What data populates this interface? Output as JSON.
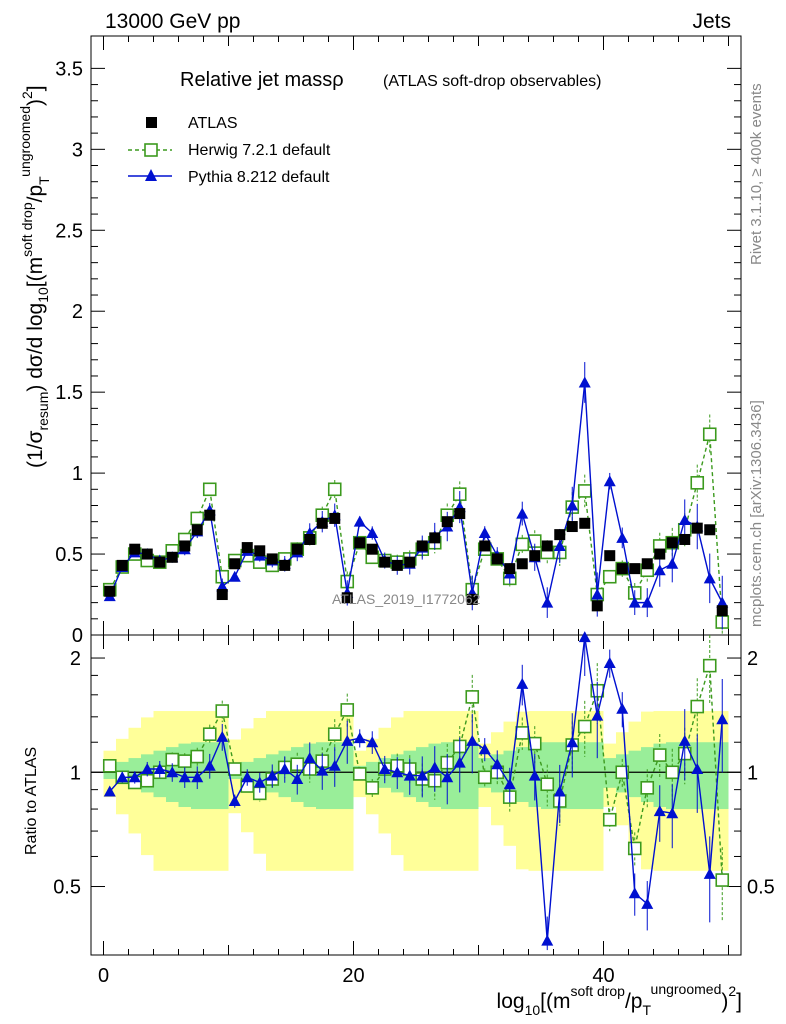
{
  "header": {
    "left": "13000 GeV pp",
    "right": "Jets"
  },
  "side_labels": {
    "rivet": "Rivet 3.1.10, ≥ 400k events",
    "mcplots": "mcplots.cern.ch [arXiv:1306.3436]"
  },
  "watermark": "ATLAS_2019_I1772062",
  "colors": {
    "atlas": "#000000",
    "herwig": "#3c9a1e",
    "pythia": "#0010d0",
    "band_inner": "#99ee99",
    "band_outer": "#ffff99"
  },
  "chart_data": [
    {
      "type": "scatter",
      "panel": "main",
      "title": "Relative jet massρ",
      "title_suffix": "(ATLAS soft-drop observables)",
      "ylabel": "(1/σ_resum) dσ/d log10[(m^{soft drop}/p_T^{ungroomed})^2]",
      "xlim": [
        -1,
        51
      ],
      "ylim": [
        0,
        3.7
      ],
      "yticks": [
        0,
        0.5,
        1,
        1.5,
        2,
        2.5,
        3,
        3.5
      ],
      "ytick_labels": [
        "0",
        "0.5",
        "1",
        "1.5",
        "2",
        "2.5",
        "3",
        "3.5"
      ],
      "legend": {
        "atlas": "ATLAS",
        "herwig": "Herwig 7.2.1 default",
        "pythia": "Pythia 8.212 default"
      },
      "x": [
        0.5,
        1.5,
        2.5,
        3.5,
        4.5,
        5.5,
        6.5,
        7.5,
        8.5,
        9.5,
        10.5,
        11.5,
        12.5,
        13.5,
        14.5,
        15.5,
        16.5,
        17.5,
        18.5,
        19.5,
        20.5,
        21.5,
        22.5,
        23.5,
        24.5,
        25.5,
        26.5,
        27.5,
        28.5,
        29.5,
        30.5,
        31.5,
        32.5,
        33.5,
        34.5,
        35.5,
        36.5,
        37.5,
        38.5,
        39.5,
        40.5,
        41.5,
        42.5,
        43.5,
        44.5,
        45.5,
        46.5,
        47.5,
        48.5,
        49.5
      ],
      "series": [
        {
          "name": "ATLAS",
          "values": [
            0.27,
            0.43,
            0.53,
            0.5,
            0.45,
            0.48,
            0.55,
            0.65,
            0.74,
            0.25,
            0.44,
            0.54,
            0.52,
            0.47,
            0.43,
            0.53,
            0.59,
            0.69,
            0.72,
            0.23,
            0.57,
            0.53,
            0.45,
            0.43,
            0.45,
            0.55,
            0.6,
            0.7,
            0.75,
            0.22,
            0.55,
            0.47,
            0.41,
            0.44,
            0.49,
            0.55,
            0.62,
            0.67,
            0.69,
            0.18,
            0.49,
            0.41,
            0.41,
            0.44,
            0.5,
            0.57,
            0.59,
            0.66,
            0.65,
            0.15
          ]
        },
        {
          "name": "Herwig 7.2.1 default",
          "values": [
            0.28,
            0.42,
            0.5,
            0.46,
            0.45,
            0.52,
            0.59,
            0.72,
            0.9,
            0.36,
            0.46,
            0.49,
            0.45,
            0.43,
            0.47,
            0.53,
            0.6,
            0.74,
            0.9,
            0.33,
            0.57,
            0.48,
            0.46,
            0.45,
            0.47,
            0.53,
            0.57,
            0.74,
            0.87,
            0.28,
            0.53,
            0.47,
            0.35,
            0.56,
            0.58,
            0.51,
            0.51,
            0.79,
            0.89,
            0.25,
            0.36,
            0.41,
            0.26,
            0.4,
            0.55,
            0.57,
            0.65,
            0.94,
            1.24,
            0.08
          ]
        },
        {
          "name": "Pythia 8.212 default",
          "values": [
            0.24,
            0.42,
            0.51,
            0.5,
            0.46,
            0.48,
            0.53,
            0.64,
            0.77,
            0.3,
            0.36,
            0.52,
            0.49,
            0.46,
            0.44,
            0.51,
            0.63,
            0.7,
            0.74,
            0.26,
            0.7,
            0.63,
            0.46,
            0.43,
            0.44,
            0.54,
            0.61,
            0.67,
            0.79,
            0.26,
            0.63,
            0.49,
            0.38,
            0.75,
            0.48,
            0.2,
            0.55,
            0.8,
            1.56,
            0.25,
            0.95,
            0.6,
            0.2,
            0.2,
            0.4,
            0.44,
            0.71,
            0.67,
            0.35,
            0.2
          ]
        }
      ]
    },
    {
      "type": "scatter",
      "panel": "ratio",
      "ylabel": "Ratio to ATLAS",
      "xlabel": "log10[(m^{soft drop}/p_T^{ungroomed})^2]",
      "xlim": [
        -1,
        51
      ],
      "ylim": [
        0.33,
        2.3
      ],
      "yticks": [
        0.5,
        1,
        2
      ],
      "ytick_labels": [
        "0.5",
        "1",
        "2"
      ],
      "xticks": [
        0,
        20,
        40
      ],
      "xtick_labels": [
        "0",
        "20",
        "40"
      ],
      "x": [
        0.5,
        1.5,
        2.5,
        3.5,
        4.5,
        5.5,
        6.5,
        7.5,
        8.5,
        9.5,
        10.5,
        11.5,
        12.5,
        13.5,
        14.5,
        15.5,
        16.5,
        17.5,
        18.5,
        19.5,
        20.5,
        21.5,
        22.5,
        23.5,
        24.5,
        25.5,
        26.5,
        27.5,
        28.5,
        29.5,
        30.5,
        31.5,
        32.5,
        33.5,
        34.5,
        35.5,
        36.5,
        37.5,
        38.5,
        39.5,
        40.5,
        41.5,
        42.5,
        43.5,
        44.5,
        45.5,
        46.5,
        47.5,
        48.5,
        49.5
      ],
      "series": [
        {
          "name": "Herwig 7.2.1 default",
          "values": [
            1.04,
            0.97,
            0.94,
            0.95,
            1.0,
            1.08,
            1.07,
            1.1,
            1.26,
            1.45,
            1.02,
            0.92,
            0.88,
            0.96,
            1.03,
            1.05,
            1.02,
            1.07,
            1.26,
            1.46,
            0.99,
            0.91,
            1.02,
            1.04,
            1.02,
            0.96,
            0.95,
            1.06,
            1.17,
            1.58,
            0.97,
            1.0,
            0.86,
            1.27,
            1.19,
            0.93,
            0.84,
            1.18,
            1.32,
            1.64,
            0.75,
            1.0,
            0.63,
            0.91,
            1.11,
            1.0,
            1.12,
            1.49,
            1.91,
            0.52
          ]
        },
        {
          "name": "Pythia 8.212 default",
          "values": [
            0.89,
            0.97,
            0.97,
            1.02,
            1.02,
            1.0,
            0.97,
            0.97,
            1.04,
            1.24,
            0.84,
            0.97,
            0.94,
            0.98,
            1.02,
            0.96,
            1.09,
            1.01,
            1.04,
            1.21,
            1.23,
            1.2,
            1.02,
            1.0,
            0.98,
            0.98,
            1.03,
            0.97,
            1.06,
            1.21,
            1.15,
            1.05,
            0.93,
            1.71,
            0.98,
            0.36,
            0.89,
            1.2,
            2.27,
            1.41,
            1.94,
            1.47,
            0.48,
            0.45,
            0.79,
            0.78,
            1.21,
            1.02,
            0.54,
            1.38
          ]
        }
      ]
    }
  ]
}
